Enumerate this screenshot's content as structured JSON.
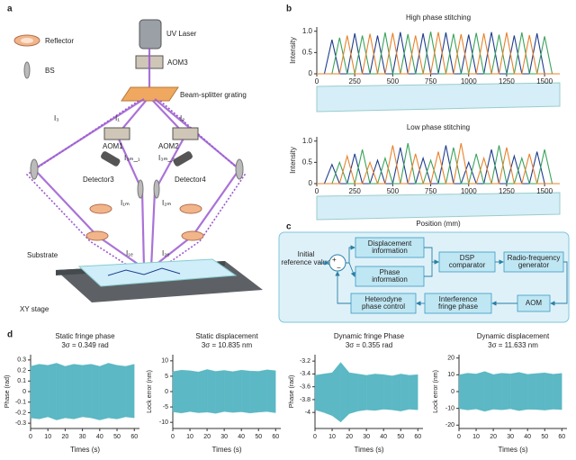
{
  "panel_labels": [
    "a",
    "b",
    "c",
    "d"
  ],
  "diagram_a": {
    "labels": [
      "Reflector",
      "BS",
      "UV Laser",
      "AOM3",
      "Beam-splitter grating",
      "I₃",
      "I₁",
      "I₂",
      "AOM1",
      "AOM2",
      "I₃ₘ_₁",
      "I₃ₘ_₂",
      "Detector3",
      "Detector4",
      "I₁ₘ",
      "I₂ₘ",
      "I₁ₑ",
      "I₂ₑ",
      "Substrate",
      "XY stage"
    ]
  },
  "diagram_c": {
    "input": [
      "Initial",
      "reference value"
    ],
    "signs": [
      "+",
      "−"
    ],
    "nodes": [
      [
        "Displacement",
        "information"
      ],
      [
        "Phase",
        "information"
      ],
      [
        "DSP",
        "comparator"
      ],
      [
        "Radio-frequency",
        "generator"
      ],
      [
        "AOM"
      ],
      [
        "Interference",
        "fringe phase"
      ],
      [
        "Heterodyne",
        "phase control"
      ]
    ]
  },
  "chart_data": [
    {
      "type": "line",
      "title": "High phase stitching",
      "y_label": "Intensity",
      "x": [
        0,
        50,
        100,
        150,
        200,
        250,
        300,
        350,
        400,
        450,
        500,
        550,
        600,
        650,
        700,
        750,
        800,
        850,
        900,
        950,
        1000,
        1050,
        1100,
        1150,
        1200,
        1250,
        1300,
        1350,
        1400,
        1450,
        1500,
        1550,
        1600
      ],
      "xlim": [
        0,
        1600
      ],
      "xticks": [
        0,
        250,
        500,
        750,
        1000,
        1250,
        1500
      ],
      "ylim": [
        0,
        1.1
      ],
      "yticks": [
        0,
        0.5,
        {
          "value": 1,
          "label": "1.0"
        }
      ],
      "series": [
        {
          "color": "#1f3d8c",
          "values": [
            0,
            0,
            0.8,
            0,
            0,
            0.95,
            0,
            0,
            0.9,
            0,
            0,
            0.98,
            0,
            0,
            0.95,
            0,
            0,
            0.97,
            0,
            0,
            0.92,
            0,
            0,
            0.98,
            0,
            0,
            0.9,
            0,
            0,
            0.95,
            0,
            0,
            0
          ]
        },
        {
          "color": "#3aa35a",
          "values": [
            0,
            0,
            0,
            0.85,
            0,
            0,
            0.9,
            0,
            0,
            0.97,
            0,
            0,
            0.93,
            0,
            0,
            0.99,
            0,
            0,
            0.94,
            0,
            0,
            0.96,
            0,
            0,
            0.92,
            0,
            0,
            0.97,
            0,
            0,
            0.88,
            0,
            0
          ]
        },
        {
          "color": "#e8822a",
          "values": [
            0,
            0,
            0,
            0,
            0.9,
            0,
            0,
            0.94,
            0,
            0,
            0.96,
            0,
            0,
            0.9,
            0,
            0,
            0.98,
            0,
            0,
            0.93,
            0,
            0,
            0.95,
            0,
            0,
            0.97,
            0,
            0,
            0.91,
            0,
            0,
            0,
            0
          ]
        }
      ]
    },
    {
      "type": "line",
      "title": "Low phase stitching",
      "y_label": "Intensity",
      "x_label": "Position (mm)",
      "x": [
        0,
        50,
        100,
        150,
        200,
        250,
        300,
        350,
        400,
        450,
        500,
        550,
        600,
        650,
        700,
        750,
        800,
        850,
        900,
        950,
        1000,
        1050,
        1100,
        1150,
        1200,
        1250,
        1300,
        1350,
        1400,
        1450,
        1500,
        1550,
        1600
      ],
      "xlim": [
        0,
        1600
      ],
      "xticks": [
        0,
        250,
        500,
        750,
        1000,
        1250,
        1500
      ],
      "ylim": [
        0,
        1.1
      ],
      "yticks": [
        0,
        0.5,
        {
          "value": 1,
          "label": "1.0"
        }
      ],
      "series": [
        {
          "color": "#1f3d8c",
          "values": [
            0,
            0,
            0.45,
            0,
            0,
            0.7,
            0,
            0,
            0.55,
            0,
            0,
            0.85,
            0,
            0,
            0.6,
            0,
            0,
            0.9,
            0,
            0,
            0.5,
            0,
            0,
            0.8,
            0,
            0,
            0.65,
            0,
            0,
            0.75,
            0,
            0,
            0
          ]
        },
        {
          "color": "#3aa35a",
          "values": [
            0,
            0,
            0,
            0.5,
            0,
            0,
            0.8,
            0,
            0,
            0.6,
            0,
            0,
            0.95,
            0,
            0,
            0.55,
            0,
            0,
            0.85,
            0,
            0,
            0.7,
            0,
            0,
            0.9,
            0,
            0,
            0.6,
            0,
            0,
            0.8,
            0,
            0
          ]
        },
        {
          "color": "#e8822a",
          "values": [
            0,
            0,
            0,
            0,
            0.65,
            0,
            0,
            0.5,
            0,
            0,
            0.9,
            0,
            0,
            0.7,
            0,
            0,
            0.75,
            0,
            0,
            0.95,
            0,
            0,
            0.6,
            0,
            0,
            0.85,
            0,
            0,
            0.7,
            0,
            0,
            0,
            0
          ]
        }
      ]
    },
    {
      "type": "area",
      "title": "Static fringe phase",
      "subtitle": "3σ = 0.349 rad",
      "y_label": "Phase (rad)",
      "x_label": "Times (s)",
      "x": [
        0,
        5,
        10,
        15,
        20,
        25,
        30,
        35,
        40,
        45,
        50,
        55,
        60
      ],
      "xlim": [
        0,
        63
      ],
      "xticks": [
        0,
        10,
        20,
        30,
        40,
        50,
        60
      ],
      "ylim": [
        -0.35,
        0.35
      ],
      "yticks": [
        -0.3,
        -0.2,
        -0.1,
        0,
        0.1,
        0.2,
        0.3
      ],
      "series": [
        {
          "color": "#5bb8c4",
          "values": [
            0.24,
            0.26,
            0.25,
            0.27,
            0.24,
            0.26,
            0.25,
            0.26,
            0.24,
            0.27,
            0.25,
            0.24,
            0.26
          ]
        },
        {
          "color": "#5bb8c4",
          "values": [
            -0.25,
            -0.26,
            -0.24,
            -0.27,
            -0.25,
            -0.26,
            -0.24,
            -0.25,
            -0.27,
            -0.25,
            -0.26,
            -0.24,
            -0.25
          ]
        }
      ]
    },
    {
      "type": "area",
      "title": "Static displacement",
      "subtitle": "3σ = 10.835 nm",
      "y_label": "Lock error (nm)",
      "x_label": "Times (s)",
      "x": [
        0,
        5,
        10,
        15,
        20,
        25,
        30,
        35,
        40,
        45,
        50,
        55,
        60
      ],
      "xlim": [
        0,
        63
      ],
      "xticks": [
        0,
        10,
        20,
        30,
        40,
        50,
        60
      ],
      "ylim": [
        -12,
        12
      ],
      "yticks": [
        -10,
        -5,
        0,
        5,
        10
      ],
      "series": [
        {
          "color": "#5bb8c4",
          "values": [
            6.5,
            7,
            6.8,
            6.4,
            7.2,
            6.6,
            6.9,
            6.5,
            7,
            6.7,
            6.6,
            7.1,
            6.8
          ]
        },
        {
          "color": "#5bb8c4",
          "values": [
            -6.6,
            -7,
            -6.5,
            -6.9,
            -6.7,
            -7.1,
            -6.5,
            -6.8,
            -6.6,
            -7,
            -6.7,
            -6.5,
            -6.9
          ]
        }
      ]
    },
    {
      "type": "area",
      "title": "Dynamic fringe Phase",
      "subtitle": "3σ = 0.355 rad",
      "y_label": "Phase (rad)",
      "x_label": "Times (s)",
      "x": [
        0,
        5,
        10,
        15,
        20,
        25,
        30,
        35,
        40,
        45,
        50,
        55,
        60
      ],
      "xlim": [
        0,
        63
      ],
      "xticks": [
        0,
        10,
        20,
        30,
        40,
        50,
        60
      ],
      "ylim": [
        -4.25,
        -3.1
      ],
      "yticks": [
        -4,
        -3.8,
        -3.6,
        -3.4,
        -3.2
      ],
      "series": [
        {
          "color": "#5bb8c4",
          "values": [
            -3.42,
            -3.4,
            -3.38,
            -3.22,
            -3.38,
            -3.4,
            -3.42,
            -3.4,
            -3.41,
            -3.43,
            -3.4,
            -3.42,
            -3.41
          ]
        },
        {
          "color": "#5bb8c4",
          "values": [
            -3.96,
            -4.0,
            -4.05,
            -4.15,
            -4.02,
            -3.98,
            -3.96,
            -3.97,
            -3.95,
            -3.96,
            -3.98,
            -3.95,
            -3.96
          ]
        }
      ]
    },
    {
      "type": "area",
      "title": "Dynamic displacement",
      "subtitle": "3σ = 11.633 nm",
      "y_label": "Lock error (nm)",
      "x_label": "Times (s)",
      "x": [
        0,
        5,
        10,
        15,
        20,
        25,
        30,
        35,
        40,
        45,
        50,
        55,
        60
      ],
      "xlim": [
        0,
        63
      ],
      "xticks": [
        0,
        10,
        20,
        30,
        40,
        50,
        60
      ],
      "ylim": [
        -22,
        22
      ],
      "yticks": [
        -20,
        -10,
        0,
        10,
        20
      ],
      "series": [
        {
          "color": "#5bb8c4",
          "values": [
            10,
            11,
            10.5,
            12,
            10.2,
            11,
            10.6,
            11.5,
            10.3,
            10.8,
            11.2,
            10.4,
            10.9
          ]
        },
        {
          "color": "#5bb8c4",
          "values": [
            -10.2,
            -11,
            -10.4,
            -11.8,
            -10.5,
            -10.9,
            -10.3,
            -11.4,
            -10.6,
            -10.7,
            -11.1,
            -10.5,
            -10.8
          ]
        }
      ]
    }
  ]
}
